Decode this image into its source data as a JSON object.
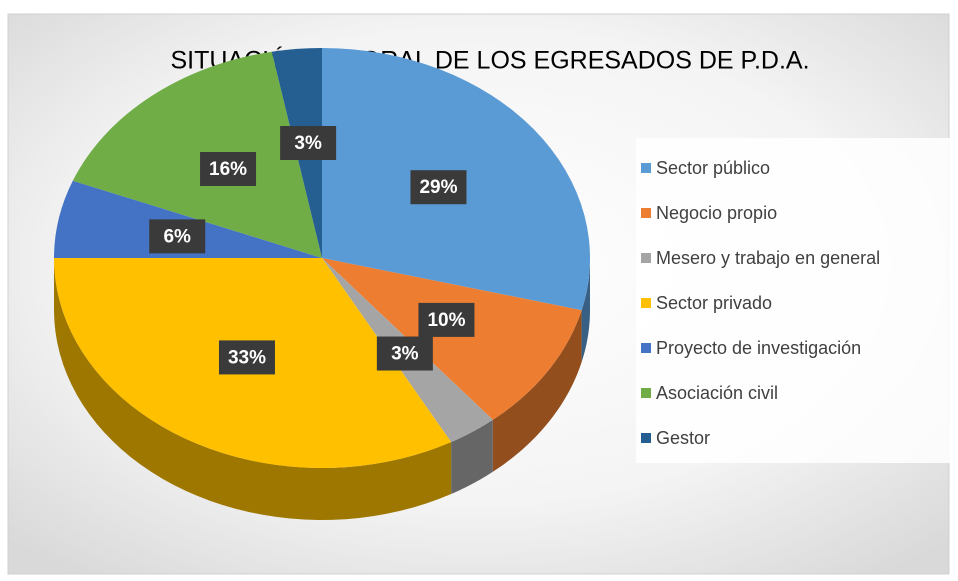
{
  "chart_data": {
    "type": "pie",
    "title": "SITUACIÓN LABORAL DE LOS EGRESADOS DE P.D.A.",
    "categories": [
      "Sector público",
      "Negocio propio",
      "Mesero y trabajo en general",
      "Sector privado",
      "Proyecto de investigación",
      "Asociación civil",
      "Gestor"
    ],
    "values": [
      29,
      10,
      3,
      33,
      6,
      16,
      3
    ],
    "value_labels": [
      "29%",
      "10%",
      "3%",
      "33%",
      "6%",
      "16%",
      "3%"
    ],
    "colors": [
      "#5b9bd5",
      "#ed7d31",
      "#a5a5a5",
      "#ffc000",
      "#4472c4",
      "#70ad47",
      "#255e91"
    ],
    "legend": "right"
  }
}
